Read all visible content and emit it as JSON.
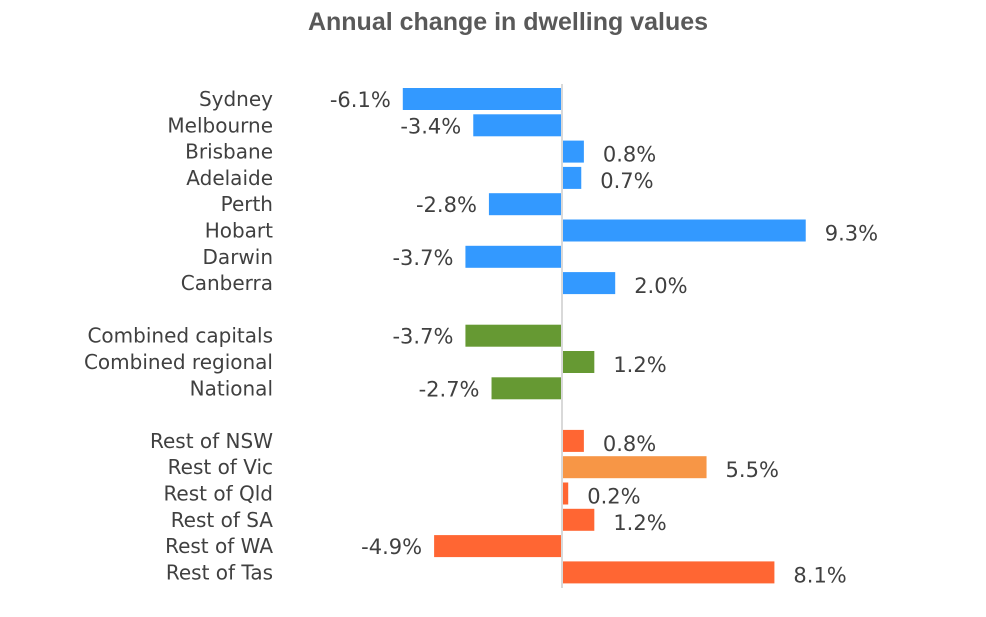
{
  "chart_data": {
    "type": "bar",
    "orientation": "horizontal",
    "title": "Annual change in dwelling values",
    "xlabel": "",
    "ylabel": "",
    "unit": "%",
    "grid": false,
    "legend": "none",
    "groups": [
      {
        "categories": [
          "Sydney",
          "Melbourne",
          "Brisbane",
          "Adelaide",
          "Perth",
          "Hobart",
          "Darwin",
          "Canberra"
        ],
        "values": [
          -6.1,
          -3.4,
          0.8,
          0.7,
          -2.8,
          9.3,
          -3.7,
          2.0
        ],
        "colors": [
          "#3399FF",
          "#3399FF",
          "#3399FF",
          "#3399FF",
          "#3399FF",
          "#3399FF",
          "#3399FF",
          "#3399FF"
        ]
      },
      {
        "categories": [
          "Combined capitals",
          "Combined regional",
          "National"
        ],
        "values": [
          -3.7,
          1.2,
          -2.7
        ],
        "colors": [
          "#669933",
          "#669933",
          "#669933"
        ]
      },
      {
        "categories": [
          "Rest of NSW",
          "Rest of Vic",
          "Rest of Qld",
          "Rest of SA",
          "Rest of WA",
          "Rest of Tas"
        ],
        "values": [
          0.8,
          5.5,
          0.2,
          1.2,
          -4.9,
          8.1
        ],
        "colors": [
          "#FF6633",
          "#F79646",
          "#FF6633",
          "#FF6633",
          "#FF6633",
          "#FF6633"
        ]
      }
    ],
    "data_labels": [
      [
        "-6.1%",
        "-3.4%",
        "0.8%",
        "0.7%",
        "-2.8%",
        "9.3%",
        "-3.7%",
        "2.0%"
      ],
      [
        "-3.7%",
        "1.2%",
        "-2.7%"
      ],
      [
        "0.8%",
        "5.5%",
        "0.2%",
        "1.2%",
        "-4.9%",
        "8.1%"
      ]
    ],
    "axis_color": "#D9D9D9"
  }
}
